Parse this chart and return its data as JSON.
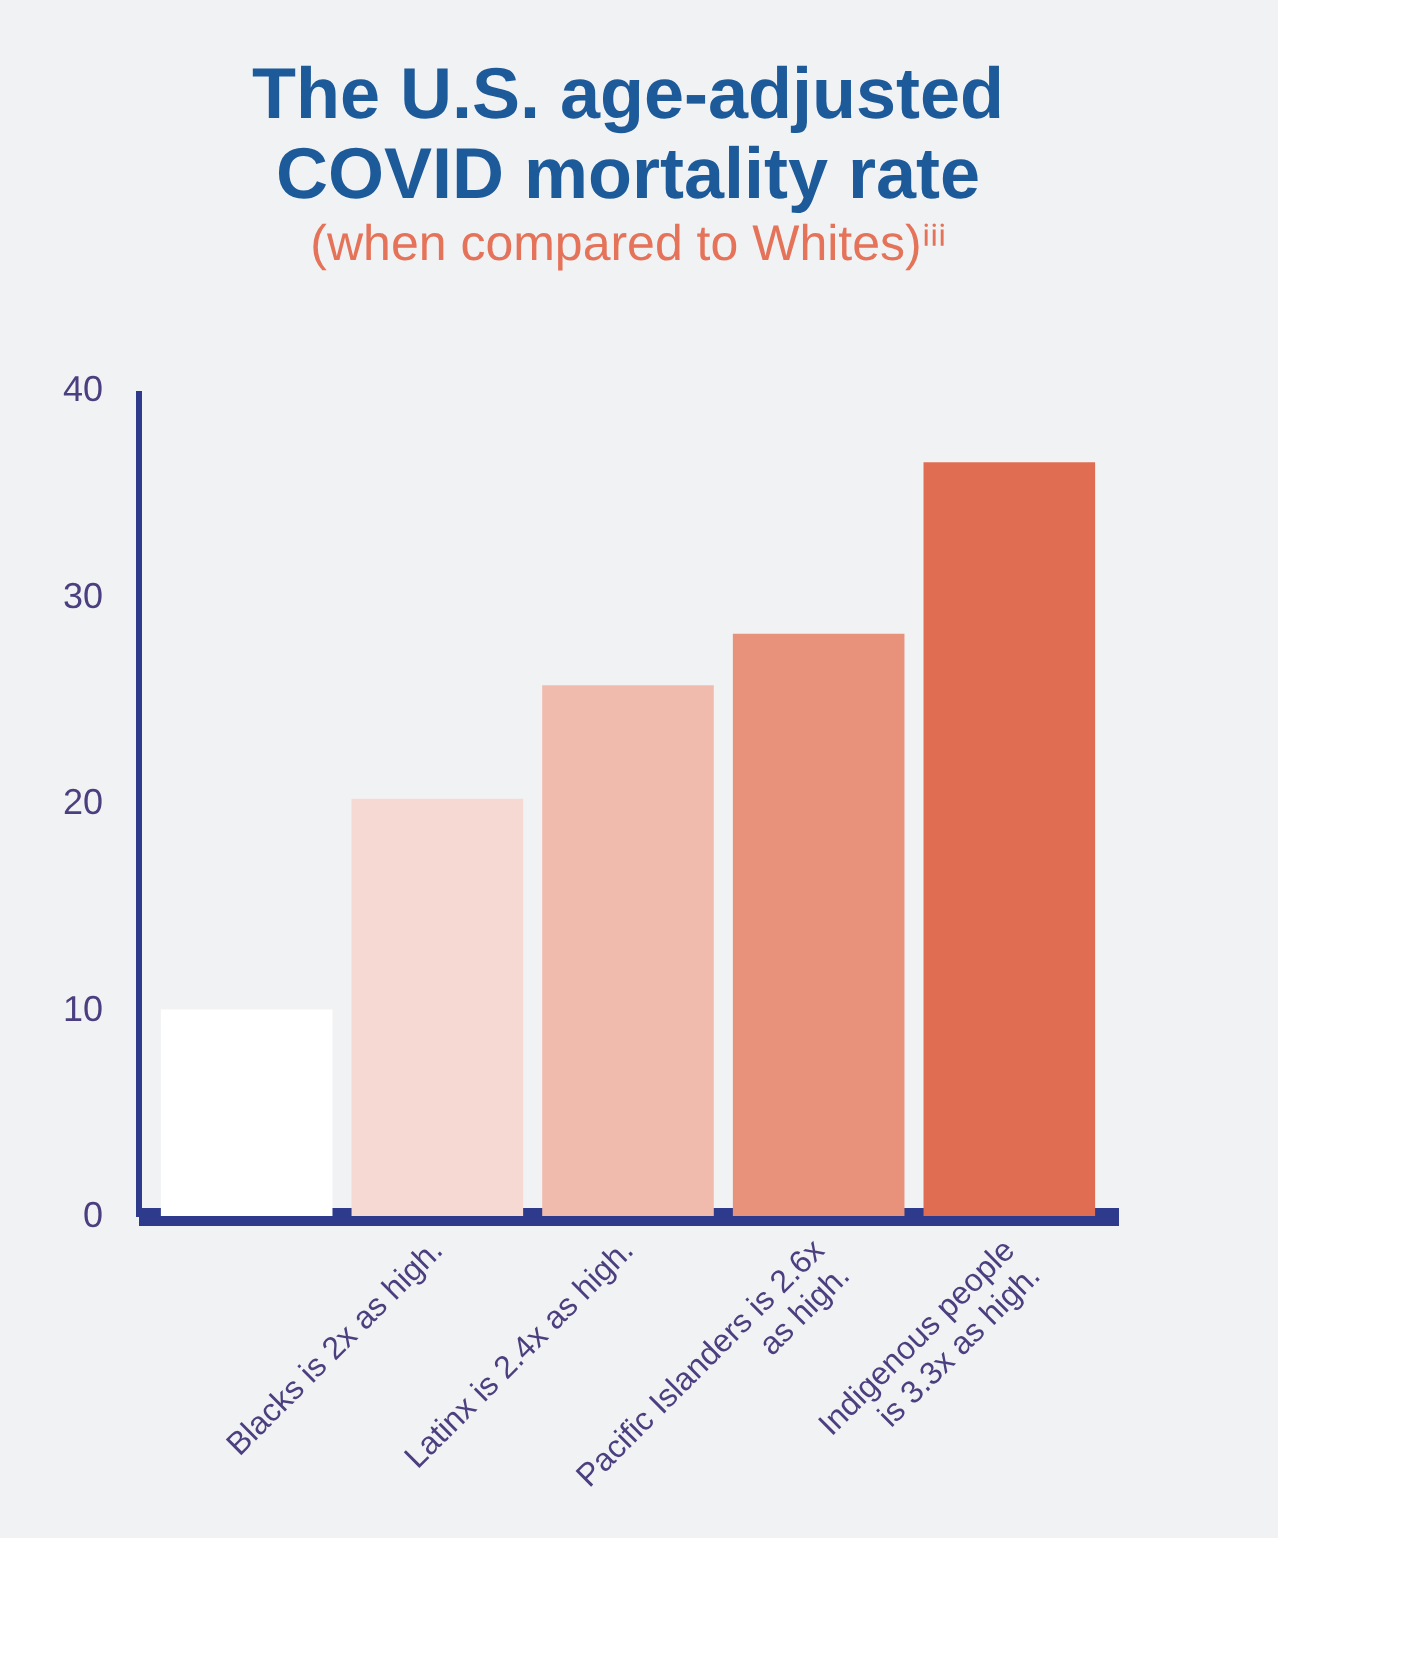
{
  "chart_data": {
    "type": "bar",
    "title": "The U.S. age-adjusted\nCOVID mortality rate",
    "subtitle": "(when compared to Whites)ⁱⁱⁱ",
    "categories": [
      null,
      "Blacks is 2x as high.",
      "Latinx is 2.4x as high.",
      "Pacific Islanders is 2.6x\nas high.",
      "Indigenous people\nis 3.3x as high."
    ],
    "values": [
      10,
      20.2,
      25.7,
      28.2,
      36.5
    ],
    "colors": [
      "#ffffff",
      "#f6d9d3",
      "#f0bbad",
      "#e8927c",
      "#e06c52"
    ],
    "ylim": [
      0,
      40
    ],
    "yticks": [
      0,
      10,
      20,
      30,
      40
    ],
    "grid": false
  }
}
